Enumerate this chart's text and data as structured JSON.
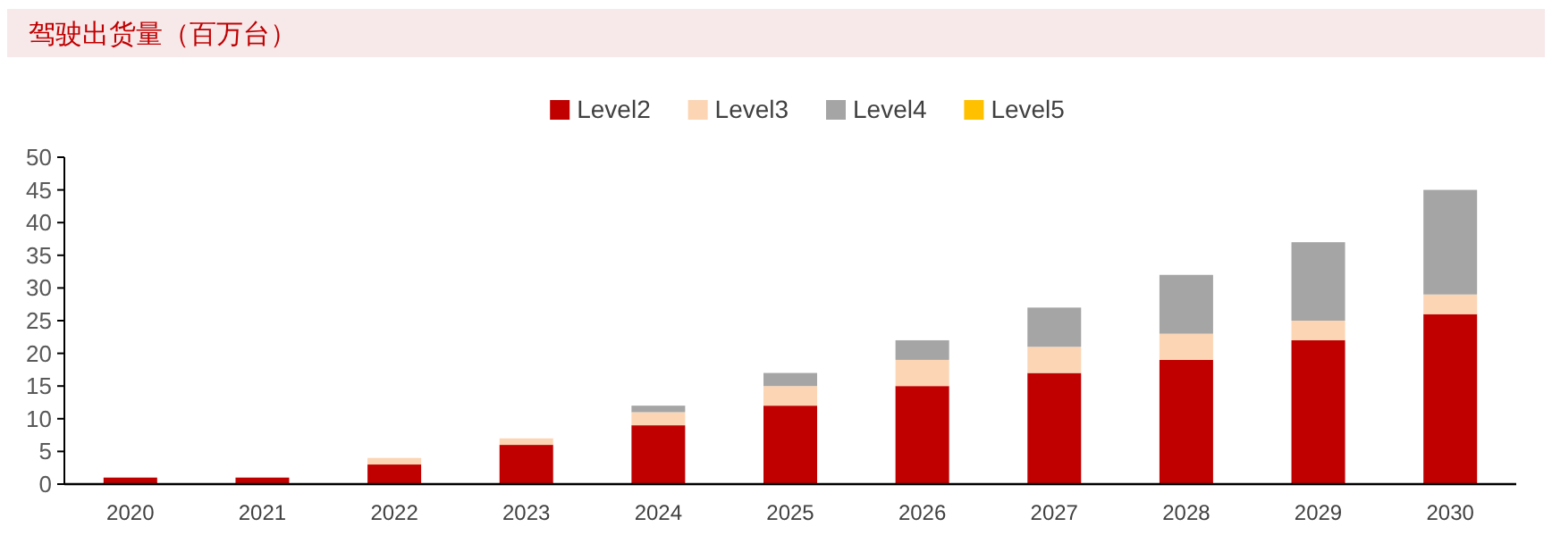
{
  "chart_data": {
    "type": "bar",
    "title": "驾驶出货量（百万台）",
    "stacked": true,
    "legend": "top",
    "categories": [
      "2020",
      "2021",
      "2022",
      "2023",
      "2024",
      "2025",
      "2026",
      "2027",
      "2028",
      "2029",
      "2030"
    ],
    "series": [
      {
        "name": "Level2",
        "color": "#c00000",
        "values": [
          1,
          1,
          3,
          6,
          9,
          12,
          15,
          17,
          19,
          22,
          26
        ]
      },
      {
        "name": "Level3",
        "color": "#fcd5b4",
        "values": [
          0,
          0,
          1,
          1,
          2,
          3,
          4,
          4,
          4,
          3,
          3
        ]
      },
      {
        "name": "Level4",
        "color": "#a5a5a5",
        "values": [
          0,
          0,
          0,
          0,
          1,
          2,
          3,
          6,
          9,
          12,
          16
        ]
      },
      {
        "name": "Level5",
        "color": "#ffc000",
        "values": [
          0,
          0,
          0,
          0,
          0,
          0,
          0,
          0,
          0,
          0,
          0
        ]
      }
    ],
    "ylim": [
      0,
      50
    ],
    "yticks": [
      0,
      5,
      10,
      15,
      20,
      25,
      30,
      35,
      40,
      45,
      50
    ]
  }
}
